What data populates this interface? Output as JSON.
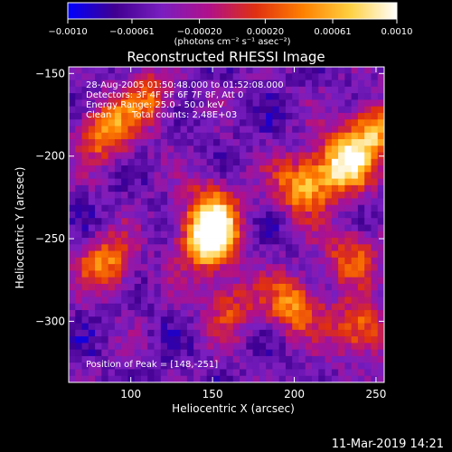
{
  "chart_data": {
    "type": "heatmap",
    "title": "Reconstructed RHESSI Image",
    "xlabel": "Heliocentric X (arcsec)",
    "ylabel": "Heliocentric Y (arcsec)",
    "xlim": [
      62,
      255
    ],
    "ylim": [
      -337,
      -146
    ],
    "x_ticks": [
      100,
      150,
      200,
      250
    ],
    "x_tick_labels": [
      "100",
      "150",
      "200",
      "250"
    ],
    "y_ticks": [
      -150,
      -200,
      -250,
      -300
    ],
    "y_tick_labels": [
      "−150",
      "−200",
      "−250",
      "−300"
    ],
    "colorbar": {
      "range": [
        -0.001,
        0.001
      ],
      "ticks": [
        -0.001,
        -0.00061,
        -0.0002,
        0.0002,
        0.00061,
        0.001
      ],
      "tick_labels": [
        "−0.0010",
        "−0.00061",
        "−0.00020",
        "0.00020",
        "0.00061",
        "0.0010"
      ],
      "unit_label": "(photons cm⁻² s⁻¹ asec⁻²)",
      "colormap": [
        "#0000ff",
        "#400090",
        "#7a1ec0",
        "#b0108a",
        "#e03010",
        "#ff8000",
        "#ffd040",
        "#ffffff"
      ]
    },
    "annotations": {
      "time": "28-Aug-2005 01:50:48.000 to 01:52:08.000",
      "detectors": "Detectors: 3F 4F 5F 6F 7F 8F, Att 0",
      "energy": "Energy Range: 25.0 - 50.0 keV",
      "clean": "Clean",
      "counts": "Total counts: 2.48E+03",
      "peak": "Position of Peak = [148,-251]"
    },
    "peak": {
      "x": 148,
      "y": -251
    },
    "bright_regions": [
      {
        "x": 148,
        "y": -251,
        "intensity": 1.0
      },
      {
        "x": 230,
        "y": -205,
        "intensity": 0.8
      },
      {
        "x": 205,
        "y": -218,
        "intensity": 0.65
      },
      {
        "x": 248,
        "y": -185,
        "intensity": 0.65
      },
      {
        "x": 85,
        "y": -185,
        "intensity": 0.6
      },
      {
        "x": 85,
        "y": -265,
        "intensity": 0.55
      },
      {
        "x": 200,
        "y": -290,
        "intensity": 0.6
      },
      {
        "x": 240,
        "y": -305,
        "intensity": 0.55
      },
      {
        "x": 150,
        "y": -230,
        "intensity": 0.5
      },
      {
        "x": 110,
        "y": -165,
        "intensity": 0.45
      },
      {
        "x": 160,
        "y": -290,
        "intensity": 0.4
      },
      {
        "x": 235,
        "y": -260,
        "intensity": 0.45
      }
    ],
    "background_level": 0.25
  },
  "footer": {
    "timestamp": "11-Mar-2019 14:21"
  }
}
